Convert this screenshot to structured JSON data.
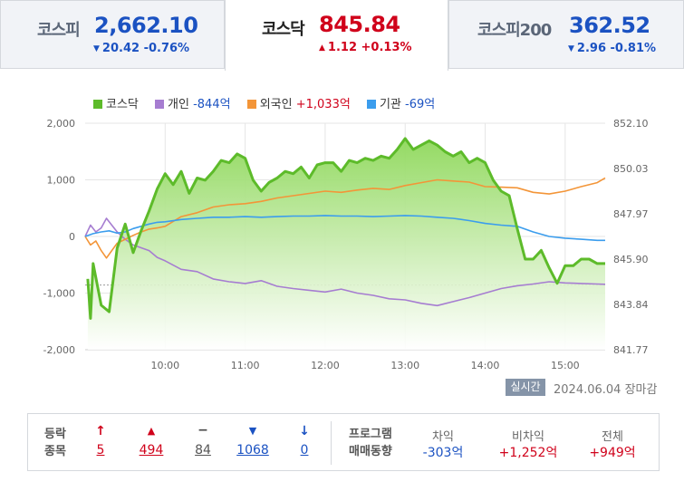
{
  "tabs": [
    {
      "name": "코스피",
      "value": "2,662.10",
      "change": "20.42 -0.76%",
      "direction": "down"
    },
    {
      "name": "코스닥",
      "value": "845.84",
      "change": "1.12 +0.13%",
      "direction": "up"
    },
    {
      "name": "코스피200",
      "value": "362.52",
      "change": "2.96 -0.81%",
      "direction": "down"
    }
  ],
  "legend": [
    {
      "label": "코스닥",
      "value": "",
      "color": "#5dbb2a"
    },
    {
      "label": "개인",
      "value": "-844억",
      "value_color": "blue",
      "color": "#a67dd1"
    },
    {
      "label": "외국인",
      "value": "+1,033억",
      "value_color": "red",
      "color": "#f39538"
    },
    {
      "label": "기관",
      "value": "-69억",
      "value_color": "blue",
      "color": "#3b9ded"
    }
  ],
  "chart_data": {
    "type": "line",
    "x_ticks": [
      "10:00",
      "11:00",
      "12:00",
      "13:00",
      "14:00",
      "15:00"
    ],
    "y_left_ticks": [
      "2,000",
      "1,000",
      "0",
      "-1,000",
      "-2,000"
    ],
    "y_left_range": [
      -2000,
      2000
    ],
    "y_right_ticks": [
      "852.10",
      "850.03",
      "847.97",
      "845.90",
      "843.84",
      "841.77"
    ],
    "y_right_range": [
      841.77,
      852.1
    ],
    "prev_close": 844.72,
    "time_range": [
      "09:00",
      "15:30"
    ],
    "series": [
      {
        "name": "코스닥",
        "color": "#5dbb2a",
        "fill": true,
        "axis": "right",
        "x": [
          "09:02",
          "09:04",
          "09:06",
          "09:12",
          "09:18",
          "09:24",
          "09:30",
          "09:36",
          "09:42",
          "09:48",
          "09:54",
          "10:00",
          "10:06",
          "10:12",
          "10:18",
          "10:24",
          "10:30",
          "10:36",
          "10:42",
          "10:48",
          "10:54",
          "11:00",
          "11:06",
          "11:12",
          "11:18",
          "11:24",
          "11:30",
          "11:36",
          "11:42",
          "11:48",
          "11:54",
          "12:00",
          "12:06",
          "12:12",
          "12:18",
          "12:24",
          "12:30",
          "12:36",
          "12:42",
          "12:48",
          "12:54",
          "13:00",
          "13:06",
          "13:12",
          "13:18",
          "13:24",
          "13:30",
          "13:36",
          "13:42",
          "13:48",
          "13:54",
          "14:00",
          "14:06",
          "14:12",
          "14:18",
          "14:24",
          "14:30",
          "14:36",
          "14:42",
          "14:48",
          "14:54",
          "15:00",
          "15:06",
          "15:12",
          "15:18",
          "15:24",
          "15:30"
        ],
        "y": [
          845.0,
          843.2,
          845.7,
          843.8,
          843.5,
          846.4,
          847.5,
          846.2,
          847.2,
          848.1,
          849.1,
          849.8,
          849.3,
          849.9,
          848.9,
          849.6,
          849.5,
          849.9,
          850.4,
          850.3,
          850.7,
          850.5,
          849.5,
          849.0,
          849.4,
          849.6,
          849.9,
          849.8,
          850.1,
          849.6,
          850.2,
          850.3,
          850.3,
          849.9,
          850.4,
          850.3,
          850.5,
          850.4,
          850.6,
          850.5,
          850.9,
          851.4,
          850.9,
          851.1,
          851.3,
          851.1,
          850.8,
          850.6,
          850.8,
          850.3,
          850.5,
          850.3,
          849.5,
          849.0,
          848.8,
          847.3,
          845.9,
          845.9,
          846.3,
          845.5,
          844.8,
          845.6,
          845.6,
          845.9,
          845.9,
          845.7,
          845.7
        ]
      },
      {
        "name": "개인",
        "color": "#a67dd1",
        "axis": "left",
        "x": [
          "09:00",
          "09:04",
          "09:08",
          "09:12",
          "09:16",
          "09:20",
          "09:24",
          "09:30",
          "09:36",
          "09:42",
          "09:48",
          "09:54",
          "10:00",
          "10:12",
          "10:24",
          "10:36",
          "10:48",
          "11:00",
          "11:12",
          "11:24",
          "11:36",
          "11:48",
          "12:00",
          "12:12",
          "12:24",
          "12:36",
          "12:48",
          "13:00",
          "13:12",
          "13:24",
          "13:36",
          "13:48",
          "14:00",
          "14:12",
          "14:24",
          "14:36",
          "14:48",
          "15:00",
          "15:12",
          "15:24",
          "15:30"
        ],
        "y": [
          0,
          200,
          80,
          150,
          320,
          200,
          80,
          -50,
          -150,
          -200,
          -250,
          -370,
          -430,
          -580,
          -620,
          -750,
          -800,
          -830,
          -780,
          -880,
          -920,
          -950,
          -980,
          -930,
          -1000,
          -1040,
          -1100,
          -1120,
          -1180,
          -1220,
          -1150,
          -1080,
          -1000,
          -920,
          -870,
          -840,
          -800,
          -820,
          -830,
          -840,
          -844
        ]
      },
      {
        "name": "외국인",
        "color": "#f39538",
        "axis": "left",
        "x": [
          "09:00",
          "09:04",
          "09:08",
          "09:12",
          "09:16",
          "09:20",
          "09:24",
          "09:30",
          "09:36",
          "09:42",
          "09:48",
          "09:54",
          "10:00",
          "10:12",
          "10:24",
          "10:36",
          "10:48",
          "11:00",
          "11:12",
          "11:24",
          "11:36",
          "11:48",
          "12:00",
          "12:12",
          "12:24",
          "12:36",
          "12:48",
          "13:00",
          "13:12",
          "13:24",
          "13:36",
          "13:48",
          "14:00",
          "14:12",
          "14:24",
          "14:36",
          "14:48",
          "15:00",
          "15:12",
          "15:24",
          "15:30"
        ],
        "y": [
          0,
          -150,
          -80,
          -250,
          -380,
          -250,
          -120,
          -50,
          20,
          80,
          130,
          150,
          180,
          350,
          420,
          520,
          560,
          580,
          620,
          680,
          720,
          760,
          800,
          780,
          820,
          850,
          830,
          900,
          950,
          1000,
          980,
          960,
          880,
          870,
          860,
          780,
          750,
          800,
          880,
          950,
          1033
        ]
      },
      {
        "name": "기관",
        "color": "#3b9ded",
        "axis": "left",
        "x": [
          "09:00",
          "09:06",
          "09:12",
          "09:18",
          "09:24",
          "09:30",
          "09:36",
          "09:42",
          "09:48",
          "09:54",
          "10:00",
          "10:12",
          "10:24",
          "10:36",
          "10:48",
          "11:00",
          "11:12",
          "11:24",
          "11:36",
          "11:48",
          "12:00",
          "12:12",
          "12:24",
          "12:36",
          "12:48",
          "13:00",
          "13:12",
          "13:24",
          "13:36",
          "13:48",
          "14:00",
          "14:12",
          "14:24",
          "14:36",
          "14:48",
          "15:00",
          "15:12",
          "15:24",
          "15:30"
        ],
        "y": [
          0,
          50,
          80,
          100,
          60,
          80,
          140,
          180,
          220,
          250,
          260,
          300,
          320,
          340,
          340,
          350,
          340,
          350,
          360,
          360,
          370,
          360,
          360,
          350,
          360,
          370,
          360,
          340,
          320,
          280,
          230,
          200,
          180,
          80,
          0,
          -30,
          -50,
          -69,
          -69
        ]
      }
    ]
  },
  "status": {
    "badge": "실시간",
    "date": "2024.06.04 장마감"
  },
  "breadth": {
    "title_line1": "등락",
    "title_line2": "종목",
    "items": [
      {
        "icon": "↑",
        "value": "5",
        "tone": "red",
        "name": "upper-limit"
      },
      {
        "icon": "▲",
        "value": "494",
        "tone": "red",
        "name": "rise"
      },
      {
        "icon": "−",
        "value": "84",
        "tone": "gray",
        "name": "unchanged"
      },
      {
        "icon": "▼",
        "value": "1068",
        "tone": "blue",
        "name": "fall"
      },
      {
        "icon": "↓",
        "value": "0",
        "tone": "blue",
        "name": "lower-limit"
      }
    ]
  },
  "program": {
    "title_line1": "프로그램",
    "title_line2": "매매동향",
    "cols": [
      {
        "head": "차익",
        "value": "-303억",
        "tone": "blue"
      },
      {
        "head": "비차익",
        "value": "+1,252억",
        "tone": "red"
      },
      {
        "head": "전체",
        "value": "+949억",
        "tone": "red"
      }
    ]
  }
}
